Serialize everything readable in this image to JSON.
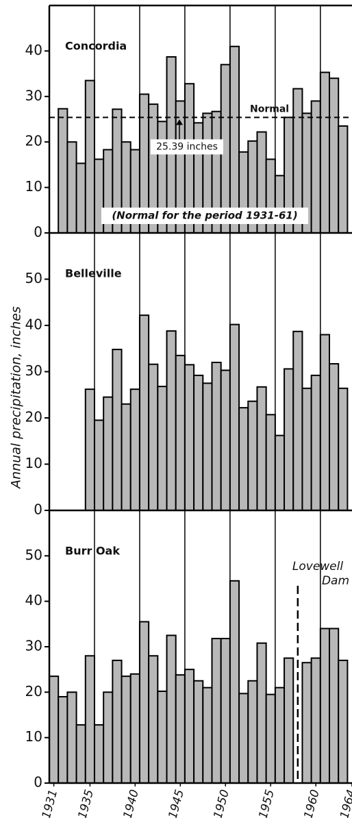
{
  "ylabel": "Annual precipitation, inches",
  "chart_data": [
    {
      "type": "bar",
      "title": "Concordia",
      "x": [
        1931,
        1932,
        1933,
        1934,
        1935,
        1936,
        1937,
        1938,
        1939,
        1940,
        1941,
        1942,
        1943,
        1944,
        1945,
        1946,
        1947,
        1948,
        1949,
        1950,
        1951,
        1952,
        1953,
        1954,
        1955,
        1956,
        1957,
        1958,
        1959,
        1960,
        1961,
        1962,
        1963
      ],
      "values": [
        null,
        27.3,
        20,
        15.3,
        33.5,
        16.2,
        18.3,
        27.2,
        20,
        18.3,
        30.5,
        28.3,
        24.5,
        38.7,
        29,
        32.8,
        24.2,
        26.3,
        26.7,
        37,
        41,
        17.8,
        20.2,
        22.2,
        16.2,
        12.6,
        25.4,
        31.7,
        26.3,
        29,
        35.3,
        34,
        23.5
      ],
      "color": "#b8b8b8",
      "xlim": [
        1930.5,
        1964
      ],
      "ylim": [
        0,
        50
      ],
      "yticks": [
        0,
        10,
        20,
        30,
        40
      ],
      "xgrid": [
        1935.5,
        1940.5,
        1945.5,
        1950.5,
        1955.5,
        1960.5
      ],
      "normal": {
        "name": "Normal",
        "value": 25.39,
        "value_label": "25.39 inches",
        "note": "(Normal for the period 1931-61)"
      }
    },
    {
      "type": "bar",
      "title": "Belleville",
      "x": [
        1931,
        1932,
        1933,
        1934,
        1935,
        1936,
        1937,
        1938,
        1939,
        1940,
        1941,
        1942,
        1943,
        1944,
        1945,
        1946,
        1947,
        1948,
        1949,
        1950,
        1951,
        1952,
        1953,
        1954,
        1955,
        1956,
        1957,
        1958,
        1959,
        1960,
        1961,
        1962,
        1963
      ],
      "values": [
        null,
        null,
        null,
        null,
        26.2,
        19.5,
        24.5,
        34.8,
        23,
        26.2,
        42.2,
        31.6,
        26.8,
        38.8,
        33.5,
        31.5,
        29.2,
        27.5,
        32,
        30.3,
        40.2,
        22.2,
        23.6,
        26.7,
        20.7,
        16.2,
        30.6,
        38.7,
        26.4,
        29.2,
        38,
        31.7,
        26.4
      ],
      "color": "#b8b8b8",
      "xlim": [
        1930.5,
        1964
      ],
      "ylim": [
        0,
        60
      ],
      "yticks": [
        0,
        10,
        20,
        30,
        40,
        50
      ],
      "xgrid": [
        1935.5,
        1940.5,
        1945.5,
        1950.5,
        1955.5,
        1960.5
      ]
    },
    {
      "type": "bar",
      "title": "Burr Oak",
      "x": [
        1931,
        1932,
        1933,
        1934,
        1935,
        1936,
        1937,
        1938,
        1939,
        1940,
        1941,
        1942,
        1943,
        1944,
        1945,
        1946,
        1947,
        1948,
        1949,
        1950,
        1951,
        1952,
        1953,
        1954,
        1955,
        1956,
        1957,
        1958,
        1959,
        1960,
        1961,
        1962,
        1963
      ],
      "values": [
        23.5,
        19,
        20,
        12.8,
        28,
        12.8,
        20,
        27,
        23.5,
        24,
        35.5,
        28,
        20.2,
        32.5,
        23.8,
        25,
        22.5,
        21,
        31.8,
        31.8,
        44.5,
        19.7,
        22.5,
        30.8,
        19.5,
        21,
        27.5,
        null,
        26.5,
        27.5,
        34,
        34,
        27
      ],
      "color": "#b8b8b8",
      "xlim": [
        1930.5,
        1964
      ],
      "ylim": [
        0,
        60
      ],
      "yticks": [
        0,
        10,
        20,
        30,
        40,
        50
      ],
      "xgrid": [
        1935.5,
        1940.5,
        1945.5,
        1950.5,
        1955.5,
        1960.5
      ],
      "xticks": [
        1931,
        1935,
        1940,
        1945,
        1950,
        1955,
        1960,
        1964
      ],
      "event": {
        "x": 1958,
        "label": [
          "Lovewell",
          "Dam"
        ]
      }
    }
  ]
}
